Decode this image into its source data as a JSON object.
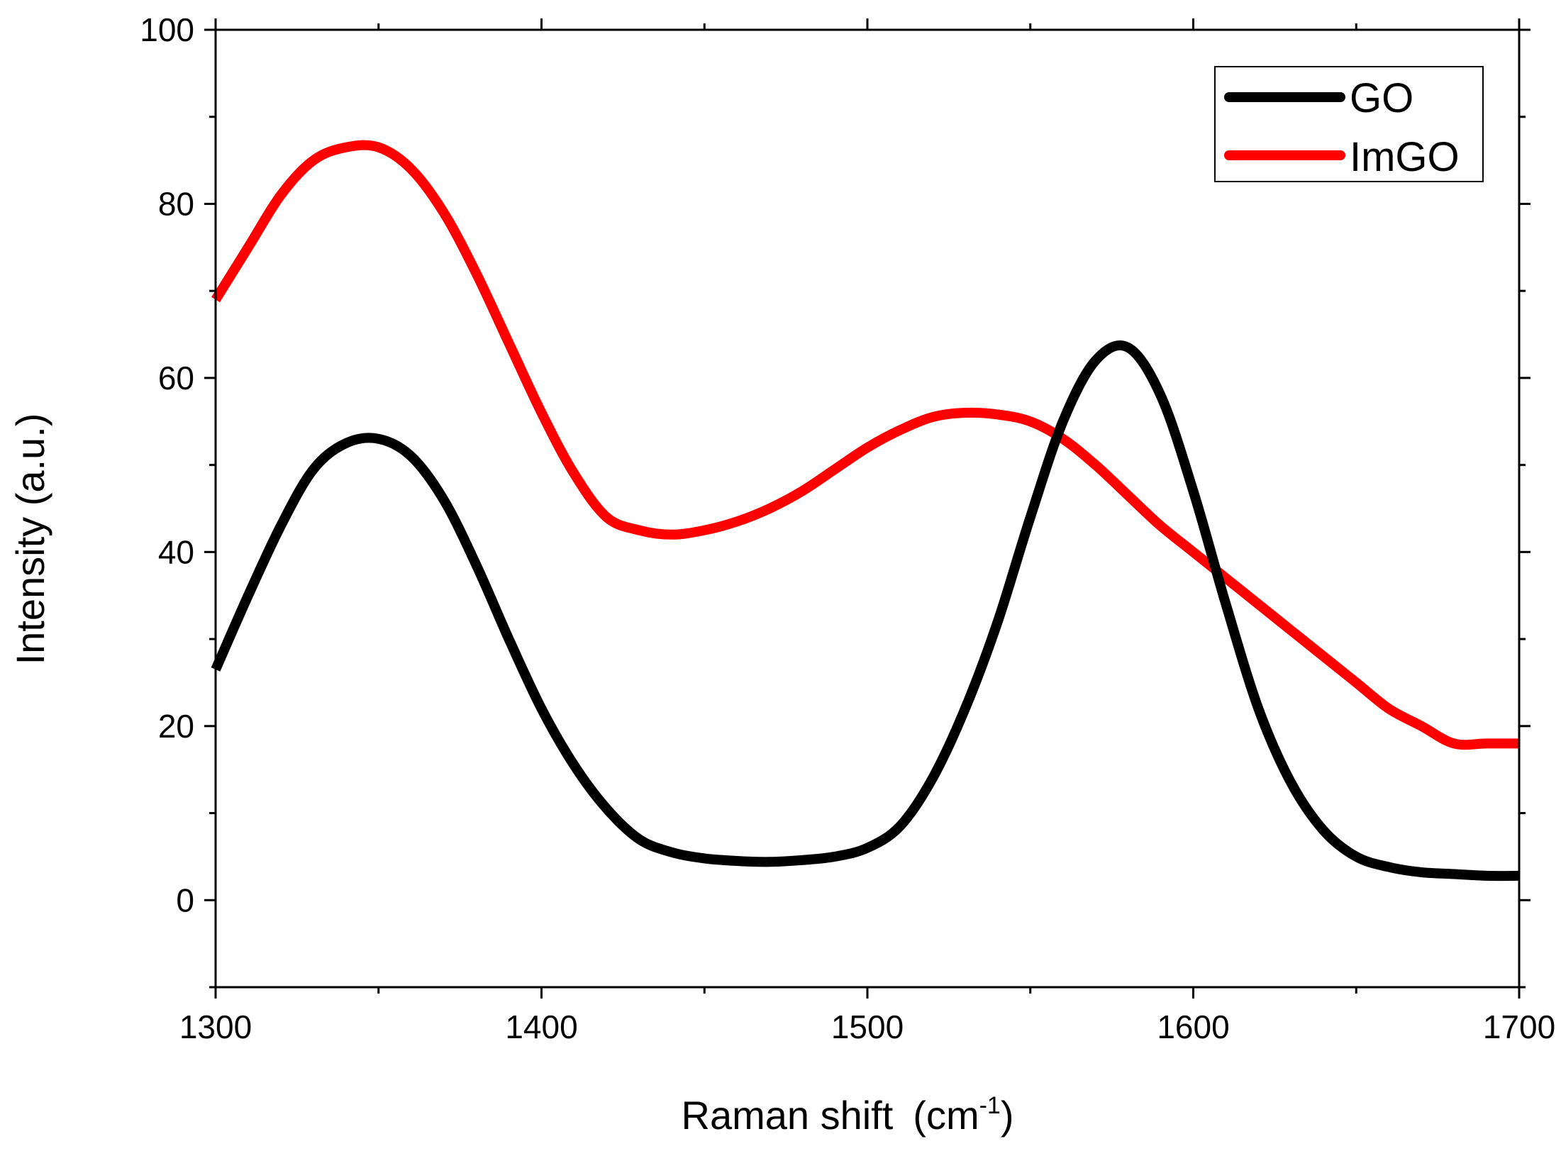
{
  "chart_data": {
    "type": "line",
    "title": "",
    "xlabel": "Raman shift",
    "xlabel_unit_base": "cm",
    "xlabel_unit_exp": "-1",
    "ylabel": "Intensity (a.u.)",
    "xlim": [
      1300,
      1700
    ],
    "ylim": [
      -10,
      100
    ],
    "x_ticks": [
      1300,
      1400,
      1500,
      1600,
      1700
    ],
    "x_tick_labels": [
      "1300",
      "1400",
      "1500",
      "1600",
      "1700"
    ],
    "y_ticks": [
      0,
      20,
      40,
      60,
      80,
      100
    ],
    "y_tick_labels": [
      "0",
      "20",
      "40",
      "60",
      "80",
      "100"
    ],
    "grid": false,
    "legend_position": "top-right",
    "x": [
      1300,
      1310,
      1320,
      1330,
      1340,
      1350,
      1360,
      1370,
      1380,
      1390,
      1400,
      1410,
      1420,
      1430,
      1440,
      1450,
      1460,
      1470,
      1480,
      1490,
      1500,
      1510,
      1520,
      1530,
      1540,
      1550,
      1560,
      1570,
      1580,
      1590,
      1600,
      1610,
      1620,
      1630,
      1640,
      1650,
      1660,
      1670,
      1680,
      1690,
      1700
    ],
    "series": [
      {
        "name": "GO",
        "color": "#000000",
        "values": [
          26.5,
          35,
          43,
          49.5,
          52.5,
          53,
          51,
          46,
          38.5,
          30,
          22,
          15.5,
          10.5,
          7,
          5.5,
          4.8,
          4.5,
          4.4,
          4.6,
          5,
          6,
          8.5,
          14,
          22,
          32,
          44,
          55,
          62,
          63.5,
          58,
          47,
          34,
          22,
          13.5,
          8,
          5,
          3.8,
          3.2,
          3,
          2.8,
          2.8
        ]
      },
      {
        "name": "ImGO",
        "color": "#ff0000",
        "values": [
          69,
          75,
          81,
          85,
          86.5,
          86.5,
          84,
          79,
          72,
          64,
          56,
          49,
          44,
          42.5,
          42,
          42.5,
          43.5,
          45,
          47,
          49.5,
          52,
          54,
          55.5,
          56,
          55.8,
          55,
          53,
          50,
          46.5,
          43,
          40,
          37,
          34,
          31,
          28,
          25,
          22,
          20,
          18,
          18,
          18
        ]
      }
    ]
  }
}
